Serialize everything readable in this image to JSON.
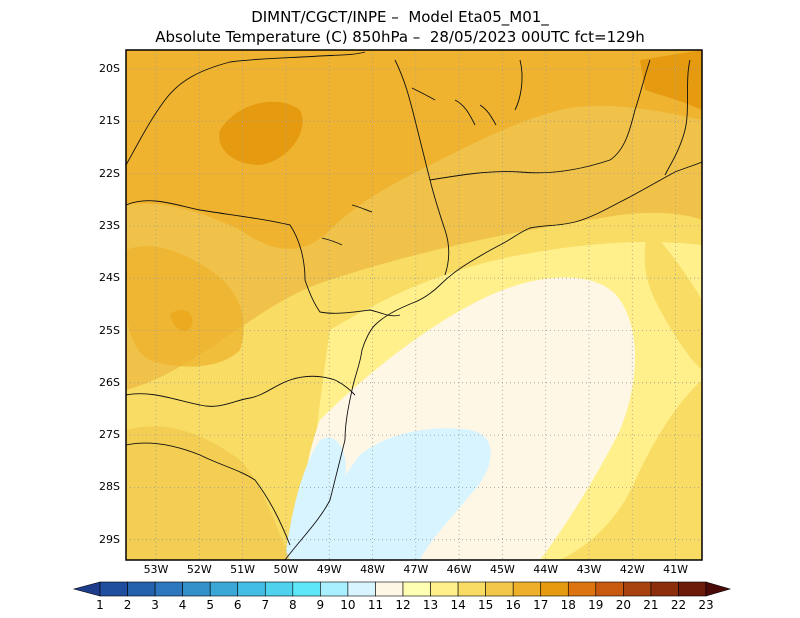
{
  "header": {
    "line1": "DIMNT/CGCT/INPE –  Model Eta05_M01_",
    "line2": "Absolute Temperature (C) 850hPa –  28/05/2023 00UTC fct=129h"
  },
  "axes": {
    "lat_labels": [
      "20S",
      "21S",
      "22S",
      "23S",
      "24S",
      "25S",
      "26S",
      "27S",
      "28S",
      "29S"
    ],
    "lon_labels": [
      "53W",
      "52W",
      "51W",
      "50W",
      "49W",
      "48W",
      "47W",
      "46W",
      "45W",
      "44W",
      "43W",
      "42W",
      "41W"
    ]
  },
  "colorbar": {
    "labels": [
      "1",
      "2",
      "3",
      "4",
      "5",
      "6",
      "7",
      "8",
      "9",
      "10",
      "11",
      "12",
      "13",
      "14",
      "15",
      "16",
      "17",
      "18",
      "19",
      "20",
      "21",
      "22",
      "23"
    ],
    "colors": [
      "#1e3c8c",
      "#1f4e9e",
      "#2462ae",
      "#2d77be",
      "#3390c9",
      "#3aa7d6",
      "#43bde3",
      "#4ed2ee",
      "#5ee8f7",
      "#a8f0ff",
      "#d8f4ff",
      "#fff7e6",
      "#ffffb3",
      "#fff08c",
      "#f8dc64",
      "#f2c84b",
      "#eeb02a",
      "#e69a0f",
      "#dc7410",
      "#c85a10",
      "#a8420e",
      "#8c2e0c",
      "#6c1a0a",
      "#4a0a08"
    ]
  }
}
